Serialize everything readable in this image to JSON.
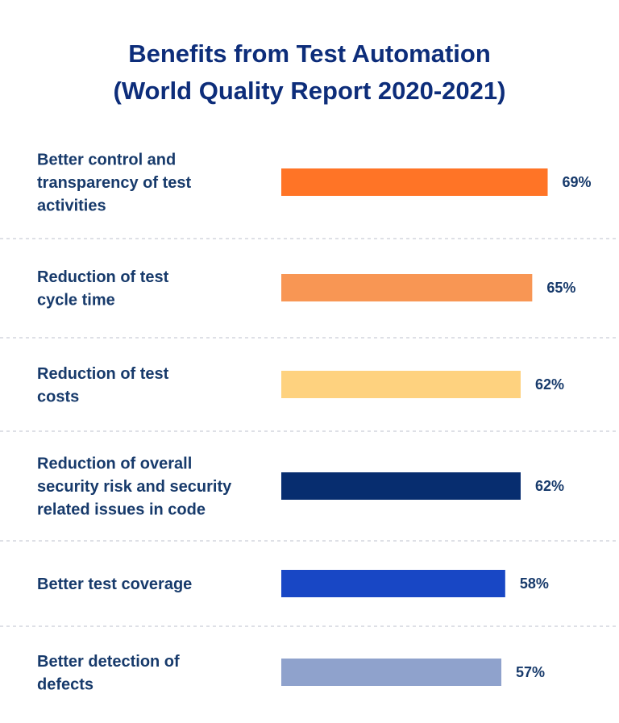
{
  "chart_data": {
    "type": "bar",
    "orientation": "horizontal",
    "title": "Benefits from Test Automation",
    "subtitle": "(World Quality Report 2020-2021)",
    "categories": [
      "Better control and transparency of test activities",
      "Reduction of test cycle time",
      "Reduction of test costs",
      "Reduction of overall security risk and security related issues in code",
      "Better test coverage",
      "Better detection of defects"
    ],
    "category_lines": [
      [
        "Better control and",
        "transparency of test",
        "activities"
      ],
      [
        "Reduction of test",
        "cycle time"
      ],
      [
        "Reduction of test",
        "costs"
      ],
      [
        "Reduction of overall",
        "security risk and security",
        "related issues in code"
      ],
      [
        "Better test coverage"
      ],
      [
        "Better detection of",
        "defects"
      ]
    ],
    "values": [
      69,
      65,
      62,
      62,
      58,
      57
    ],
    "value_labels": [
      "69%",
      "65%",
      "62%",
      "62%",
      "58%",
      "57%"
    ],
    "bar_colors": [
      "#ff7426",
      "#f89654",
      "#fed27f",
      "#072d6f",
      "#1847c5",
      "#8fa2cc"
    ],
    "xlim": [
      0,
      100
    ],
    "grid": false,
    "legend": "none"
  }
}
